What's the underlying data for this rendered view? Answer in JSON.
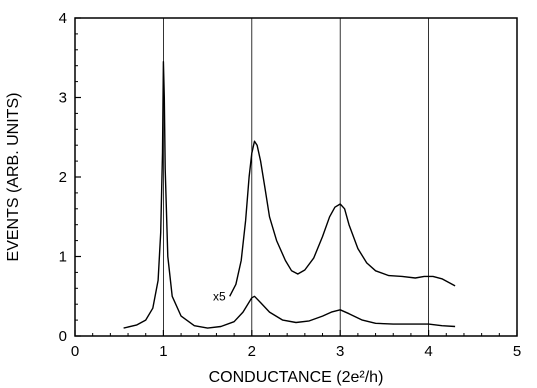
{
  "chart_data": {
    "type": "line",
    "title": "",
    "xlabel": "CONDUCTANCE (2e²/h)",
    "ylabel": "EVENTS (ARB. UNITS)",
    "xlim": [
      0,
      5
    ],
    "ylim": [
      0,
      4
    ],
    "xticks": [
      "0",
      "1",
      "2",
      "3",
      "4",
      "5"
    ],
    "yticks": [
      "0",
      "1",
      "2",
      "3",
      "4"
    ],
    "vertical_gridlines_at": [
      1,
      2,
      3,
      4
    ],
    "annotations": [
      {
        "text": "x5",
        "x": 1.75,
        "y": 0.5
      }
    ],
    "series": [
      {
        "values_xy": [
          [
            0.55,
            0.1
          ],
          [
            0.7,
            0.14
          ],
          [
            0.8,
            0.2
          ],
          [
            0.88,
            0.35
          ],
          [
            0.94,
            0.7
          ],
          [
            0.97,
            1.3
          ],
          [
            0.99,
            2.3
          ],
          [
            1.0,
            3.45
          ],
          [
            1.01,
            3.0
          ],
          [
            1.02,
            2.1
          ],
          [
            1.05,
            1.0
          ],
          [
            1.1,
            0.5
          ],
          [
            1.2,
            0.25
          ],
          [
            1.35,
            0.13
          ],
          [
            1.5,
            0.1
          ],
          [
            1.65,
            0.12
          ],
          [
            1.8,
            0.18
          ],
          [
            1.9,
            0.3
          ],
          [
            2.0,
            0.48
          ],
          [
            2.03,
            0.5
          ],
          [
            2.1,
            0.42
          ],
          [
            2.2,
            0.3
          ],
          [
            2.35,
            0.2
          ],
          [
            2.5,
            0.17
          ],
          [
            2.65,
            0.19
          ],
          [
            2.8,
            0.25
          ],
          [
            2.9,
            0.3
          ],
          [
            3.0,
            0.33
          ],
          [
            3.1,
            0.28
          ],
          [
            3.25,
            0.2
          ],
          [
            3.4,
            0.16
          ],
          [
            3.6,
            0.15
          ],
          [
            3.8,
            0.15
          ],
          [
            4.0,
            0.15
          ],
          [
            4.15,
            0.13
          ],
          [
            4.3,
            0.12
          ]
        ]
      },
      {
        "values_xy": [
          [
            1.75,
            0.5
          ],
          [
            1.82,
            0.65
          ],
          [
            1.88,
            0.95
          ],
          [
            1.93,
            1.45
          ],
          [
            1.97,
            2.0
          ],
          [
            2.0,
            2.3
          ],
          [
            2.03,
            2.45
          ],
          [
            2.06,
            2.4
          ],
          [
            2.1,
            2.2
          ],
          [
            2.15,
            1.85
          ],
          [
            2.2,
            1.5
          ],
          [
            2.28,
            1.2
          ],
          [
            2.38,
            0.95
          ],
          [
            2.45,
            0.82
          ],
          [
            2.52,
            0.78
          ],
          [
            2.6,
            0.83
          ],
          [
            2.7,
            0.98
          ],
          [
            2.8,
            1.25
          ],
          [
            2.88,
            1.5
          ],
          [
            2.94,
            1.62
          ],
          [
            3.0,
            1.66
          ],
          [
            3.05,
            1.6
          ],
          [
            3.1,
            1.4
          ],
          [
            3.2,
            1.1
          ],
          [
            3.3,
            0.92
          ],
          [
            3.4,
            0.82
          ],
          [
            3.55,
            0.76
          ],
          [
            3.7,
            0.75
          ],
          [
            3.85,
            0.73
          ],
          [
            3.95,
            0.75
          ],
          [
            4.05,
            0.75
          ],
          [
            4.15,
            0.72
          ],
          [
            4.25,
            0.66
          ],
          [
            4.3,
            0.63
          ]
        ]
      }
    ]
  }
}
